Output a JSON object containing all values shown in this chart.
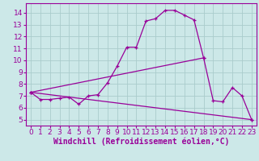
{
  "xlabel": "Windchill (Refroidissement éolien,°C)",
  "bg_color": "#cce8e8",
  "line_color": "#990099",
  "spine_color": "#6633aa",
  "xlim": [
    -0.5,
    23.5
  ],
  "ylim": [
    4.5,
    14.8
  ],
  "xticks": [
    0,
    1,
    2,
    3,
    4,
    5,
    6,
    7,
    8,
    9,
    10,
    11,
    12,
    13,
    14,
    15,
    16,
    17,
    18,
    19,
    20,
    21,
    22,
    23
  ],
  "yticks": [
    5,
    6,
    7,
    8,
    9,
    10,
    11,
    12,
    13,
    14
  ],
  "curve1_x": [
    0,
    1,
    2,
    3,
    4,
    5,
    6,
    7,
    8,
    9,
    10,
    11,
    12,
    13,
    14,
    15,
    16,
    17,
    18,
    19,
    20,
    21,
    22,
    23
  ],
  "curve1_y": [
    7.3,
    6.7,
    6.7,
    6.8,
    6.9,
    6.3,
    7.0,
    7.1,
    8.1,
    9.5,
    11.1,
    11.1,
    13.3,
    13.5,
    14.2,
    14.2,
    13.8,
    13.4,
    10.2,
    6.6,
    6.5,
    7.7,
    7.0,
    5.0
  ],
  "curve2_x": [
    0,
    23
  ],
  "curve2_y": [
    7.3,
    5.0
  ],
  "curve3_x": [
    0,
    18
  ],
  "curve3_y": [
    7.3,
    10.2
  ],
  "grid_color": "#aacccc",
  "font_size_xlabel": 7,
  "tick_fontsize": 6.5
}
